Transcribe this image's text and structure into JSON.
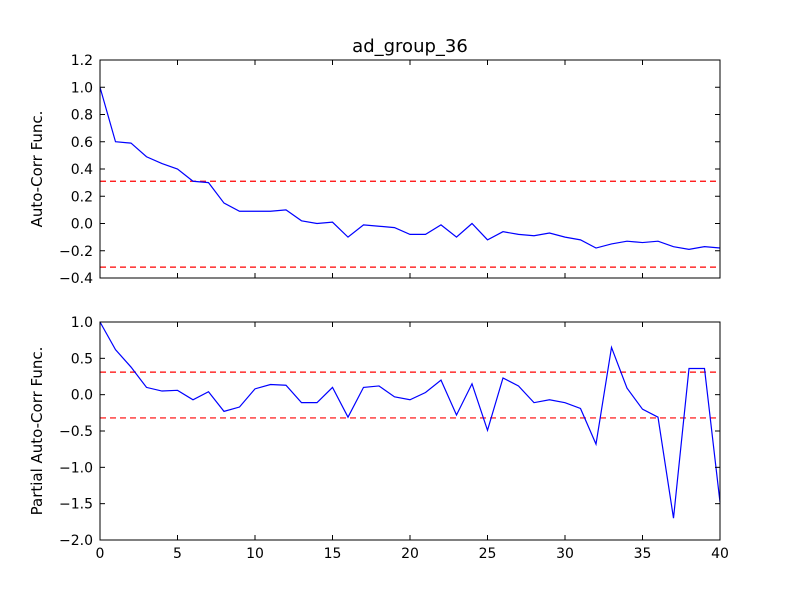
{
  "chart_data": [
    {
      "type": "line",
      "title": "ad_group_36",
      "xlabel": "",
      "ylabel": "Auto-Corr Func.",
      "xlim": [
        0,
        40
      ],
      "ylim": [
        -0.4,
        1.2
      ],
      "yticks": [
        -0.4,
        -0.2,
        0.0,
        0.2,
        0.4,
        0.6,
        0.8,
        1.0,
        1.2
      ],
      "xticks": [
        0,
        5,
        10,
        15,
        20,
        25,
        30,
        35,
        40
      ],
      "show_xtick_labels": false,
      "grid": false,
      "line_color": "#0000ff",
      "x": [
        0,
        1,
        2,
        3,
        4,
        5,
        6,
        7,
        8,
        9,
        10,
        11,
        12,
        13,
        14,
        15,
        16,
        17,
        18,
        19,
        20,
        21,
        22,
        23,
        24,
        25,
        26,
        27,
        28,
        29,
        30,
        31,
        32,
        33,
        34,
        35,
        36,
        37,
        38,
        39,
        40
      ],
      "values": [
        1.0,
        0.6,
        0.59,
        0.49,
        0.44,
        0.4,
        0.31,
        0.3,
        0.15,
        0.09,
        0.09,
        0.09,
        0.1,
        0.02,
        0.0,
        0.01,
        -0.1,
        -0.01,
        -0.02,
        -0.03,
        -0.08,
        -0.08,
        -0.01,
        -0.1,
        0.0,
        -0.12,
        -0.06,
        -0.08,
        -0.09,
        -0.07,
        -0.1,
        -0.12,
        -0.18,
        -0.15,
        -0.13,
        -0.14,
        -0.13,
        -0.17,
        -0.19,
        -0.17,
        -0.18
      ],
      "confidence_bands": {
        "upper": 0.31,
        "lower": -0.32,
        "color": "#ff0000",
        "style": "dashed"
      }
    },
    {
      "type": "line",
      "title": "",
      "xlabel": "",
      "ylabel": "Partial Auto-Corr Func.",
      "xlim": [
        0,
        40
      ],
      "ylim": [
        -2.0,
        1.0
      ],
      "yticks": [
        -2.0,
        -1.5,
        -1.0,
        -0.5,
        0.0,
        0.5,
        1.0
      ],
      "xticks": [
        0,
        5,
        10,
        15,
        20,
        25,
        30,
        35,
        40
      ],
      "show_xtick_labels": true,
      "grid": false,
      "line_color": "#0000ff",
      "x": [
        0,
        1,
        2,
        3,
        4,
        5,
        6,
        7,
        8,
        9,
        10,
        11,
        12,
        13,
        14,
        15,
        16,
        17,
        18,
        19,
        20,
        21,
        22,
        23,
        24,
        25,
        26,
        27,
        28,
        29,
        30,
        31,
        32,
        33,
        34,
        35,
        36,
        37,
        38,
        39,
        40
      ],
      "values": [
        1.0,
        0.62,
        0.38,
        0.1,
        0.05,
        0.06,
        -0.07,
        0.04,
        -0.23,
        -0.17,
        0.08,
        0.14,
        0.13,
        -0.11,
        -0.11,
        0.1,
        -0.31,
        0.1,
        0.12,
        -0.03,
        -0.07,
        0.03,
        0.2,
        -0.28,
        0.15,
        -0.49,
        0.23,
        0.12,
        -0.11,
        -0.07,
        -0.11,
        -0.19,
        -0.68,
        0.65,
        0.09,
        -0.2,
        -0.31,
        -1.7,
        0.36,
        0.36,
        -1.48
      ],
      "confidence_bands": {
        "upper": 0.31,
        "lower": -0.32,
        "color": "#ff0000",
        "style": "dashed"
      }
    }
  ]
}
